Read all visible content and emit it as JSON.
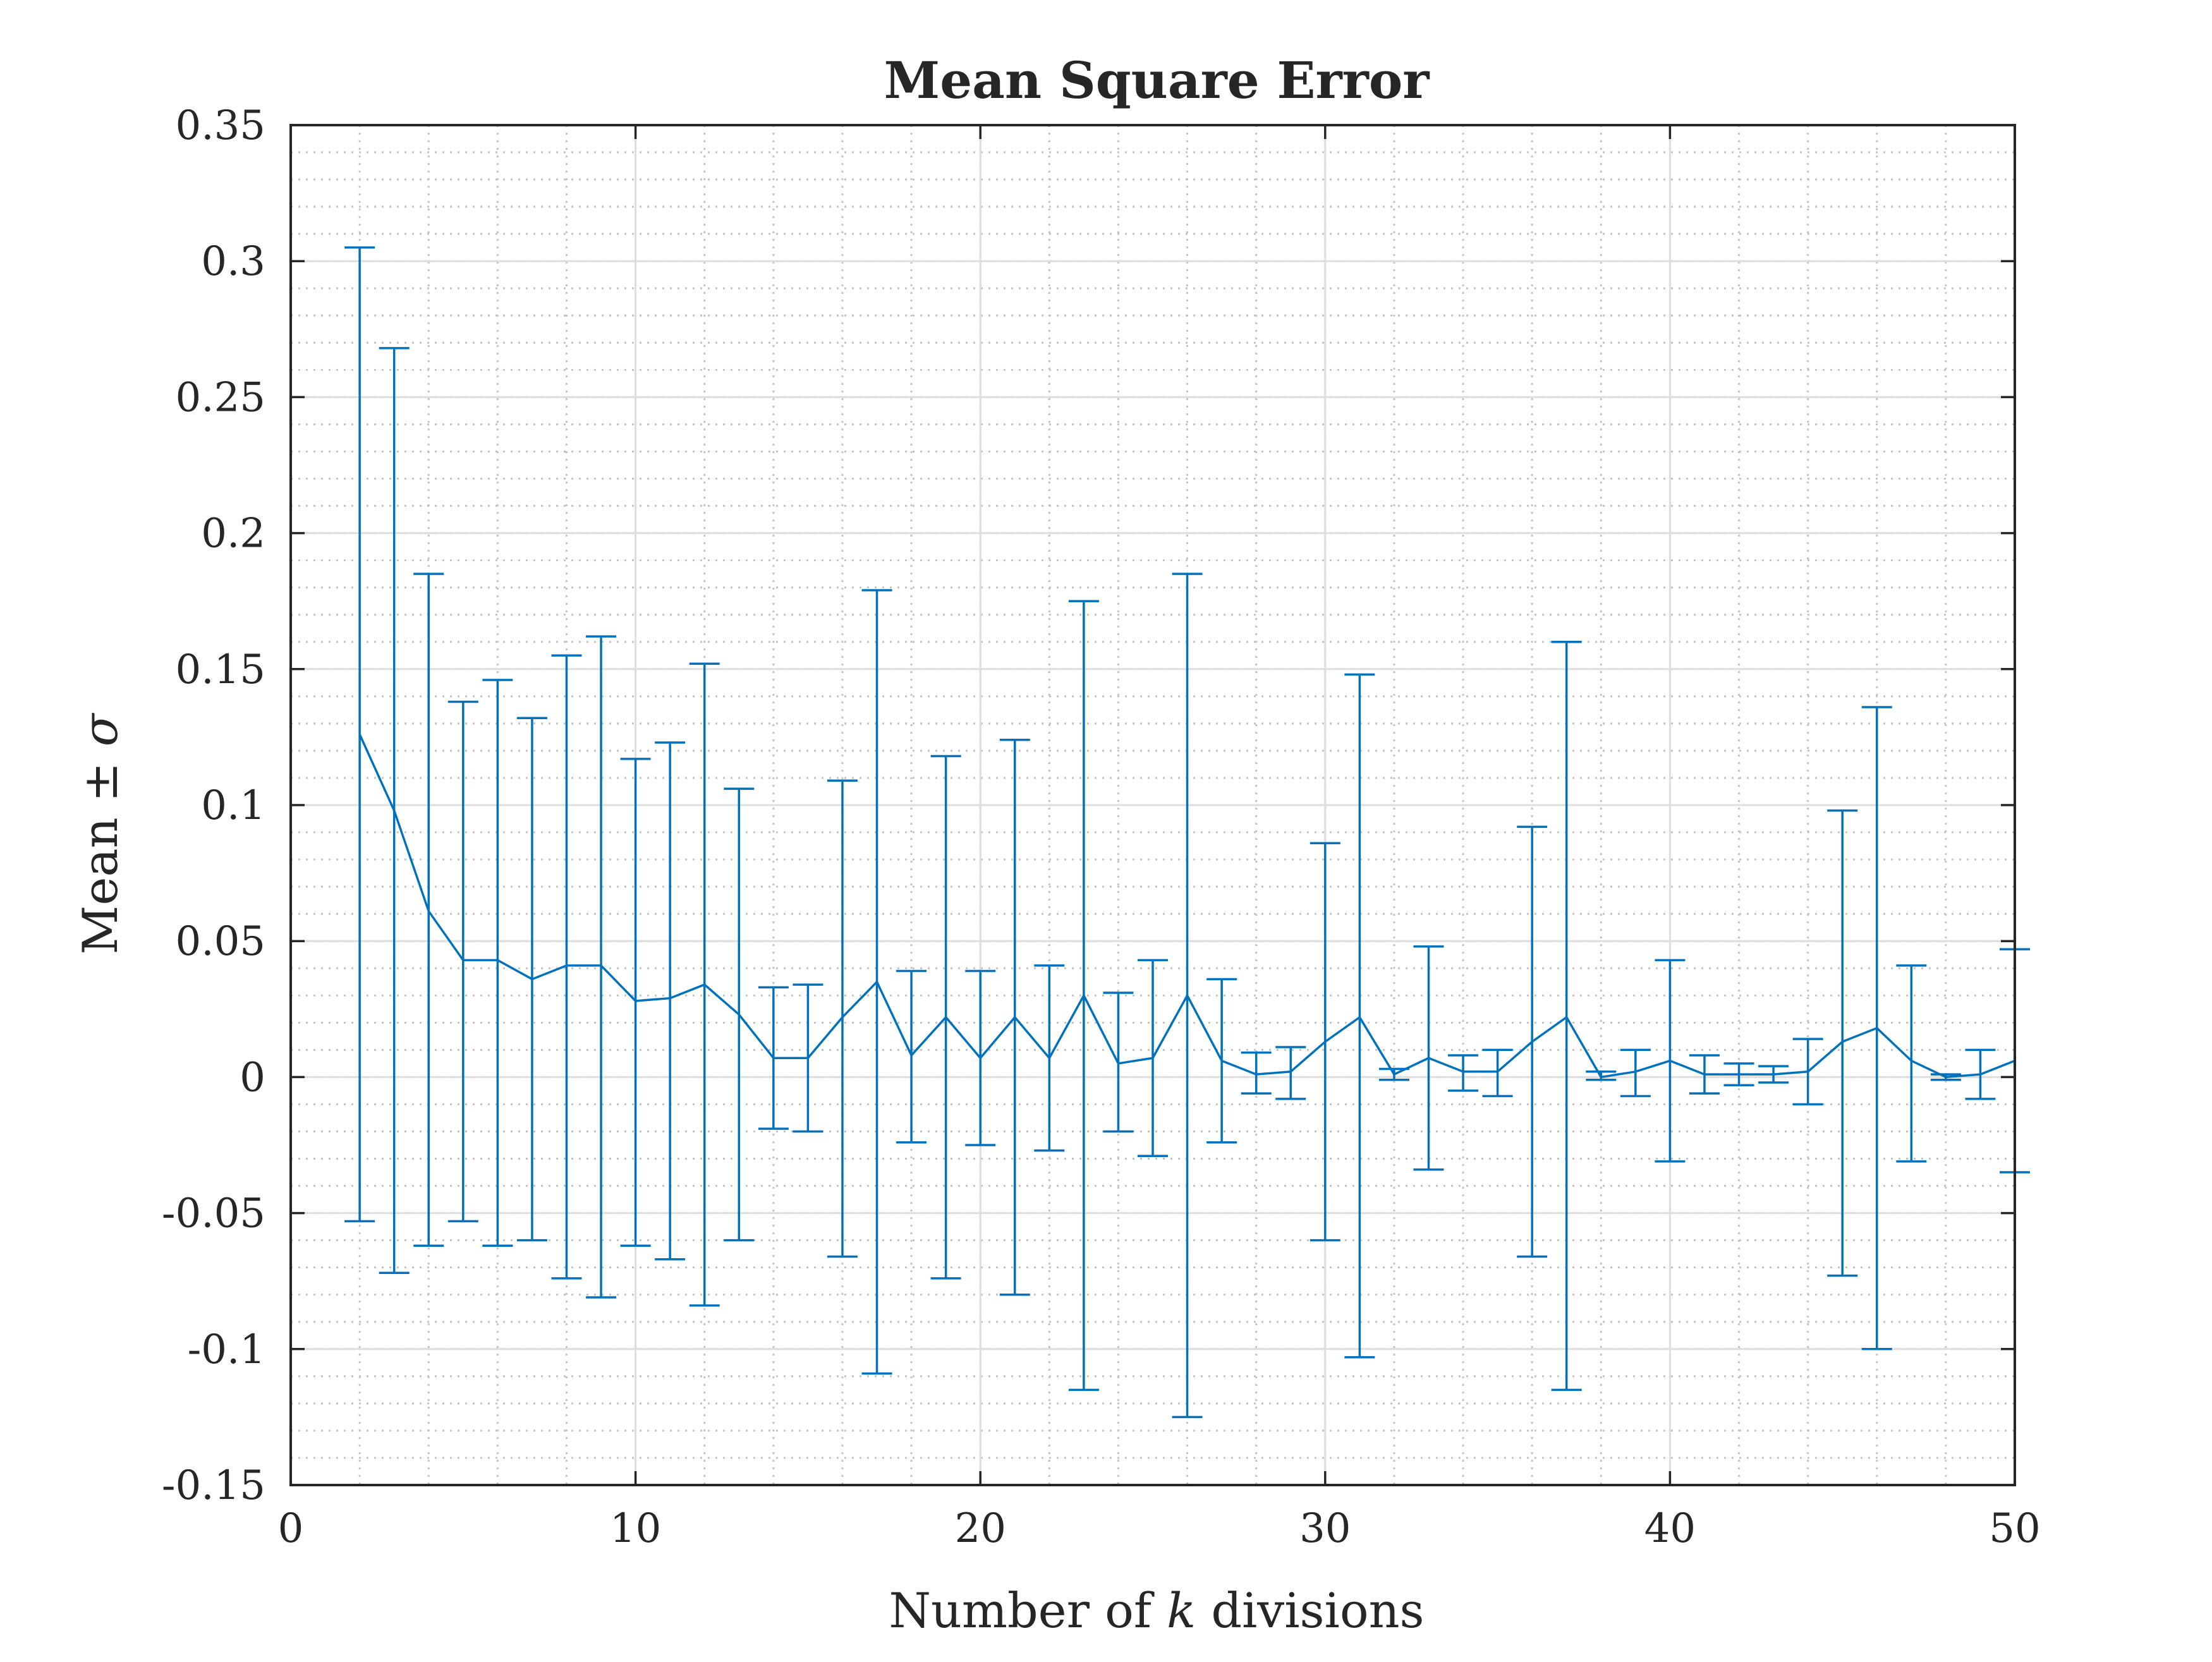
{
  "chart_data": {
    "type": "line",
    "title": "Mean Square Error",
    "xlabel": "Number of k divisions",
    "xlabel_parts": {
      "pre": "Number of ",
      "var": "k",
      "post": " divisions"
    },
    "ylabel": "Mean ± σ",
    "ylabel_parts": {
      "pre": "Mean ± ",
      "var": "σ"
    },
    "xlim": [
      0,
      50
    ],
    "ylim": [
      -0.15,
      0.35
    ],
    "xticks": [
      0,
      10,
      20,
      30,
      40,
      50
    ],
    "xtick_labels": [
      "0",
      "10",
      "20",
      "30",
      "40",
      "50"
    ],
    "yticks": [
      -0.15,
      -0.1,
      -0.05,
      0,
      0.05,
      0.1,
      0.15,
      0.2,
      0.25,
      0.3,
      0.35
    ],
    "ytick_labels": [
      "-0.15",
      "-0.1",
      "-0.05",
      "0",
      "0.05",
      "0.1",
      "0.15",
      "0.2",
      "0.25",
      "0.3",
      "0.35"
    ],
    "grid": true,
    "minor_grid": true,
    "color": "#0072BD",
    "series": [
      {
        "x": [
          2,
          3,
          4,
          5,
          6,
          7,
          8,
          9,
          10,
          11,
          12,
          13,
          14,
          15,
          16,
          17,
          18,
          19,
          20,
          21,
          22,
          23,
          24,
          25,
          26,
          27,
          28,
          29,
          30,
          31,
          32,
          33,
          34,
          35,
          36,
          37,
          38,
          39,
          40,
          41,
          42,
          43,
          44,
          45,
          46,
          47,
          48,
          49,
          50
        ],
        "mean": [
          0.126,
          0.098,
          0.061,
          0.043,
          0.043,
          0.036,
          0.041,
          0.041,
          0.028,
          0.029,
          0.034,
          0.023,
          0.007,
          0.007,
          0.022,
          0.035,
          0.008,
          0.022,
          0.007,
          0.022,
          0.007,
          0.03,
          0.005,
          0.007,
          0.03,
          0.006,
          0.001,
          0.002,
          0.013,
          0.022,
          0.001,
          0.007,
          0.002,
          0.002,
          0.013,
          0.022,
          0.0,
          0.002,
          0.006,
          0.001,
          0.001,
          0.001,
          0.002,
          0.013,
          0.018,
          0.006,
          0.0,
          0.001,
          0.006
        ],
        "upper": [
          0.305,
          0.268,
          0.185,
          0.138,
          0.146,
          0.132,
          0.155,
          0.162,
          0.117,
          0.123,
          0.152,
          0.106,
          0.033,
          0.034,
          0.109,
          0.179,
          0.039,
          0.118,
          0.039,
          0.124,
          0.041,
          0.175,
          0.031,
          0.043,
          0.185,
          0.036,
          0.009,
          0.011,
          0.086,
          0.148,
          0.003,
          0.048,
          0.008,
          0.01,
          0.092,
          0.16,
          0.002,
          0.01,
          0.043,
          0.008,
          0.005,
          0.004,
          0.014,
          0.098,
          0.136,
          0.041,
          0.001,
          0.01,
          0.047
        ],
        "lower": [
          -0.053,
          -0.072,
          -0.062,
          -0.053,
          -0.062,
          -0.06,
          -0.074,
          -0.081,
          -0.062,
          -0.067,
          -0.084,
          -0.06,
          -0.019,
          -0.02,
          -0.066,
          -0.109,
          -0.024,
          -0.074,
          -0.025,
          -0.08,
          -0.027,
          -0.115,
          -0.02,
          -0.029,
          -0.125,
          -0.024,
          -0.006,
          -0.008,
          -0.06,
          -0.103,
          -0.001,
          -0.034,
          -0.005,
          -0.007,
          -0.066,
          -0.115,
          -0.001,
          -0.007,
          -0.031,
          -0.006,
          -0.003,
          -0.002,
          -0.01,
          -0.073,
          -0.1,
          -0.031,
          -0.001,
          -0.008,
          -0.035
        ]
      }
    ]
  }
}
